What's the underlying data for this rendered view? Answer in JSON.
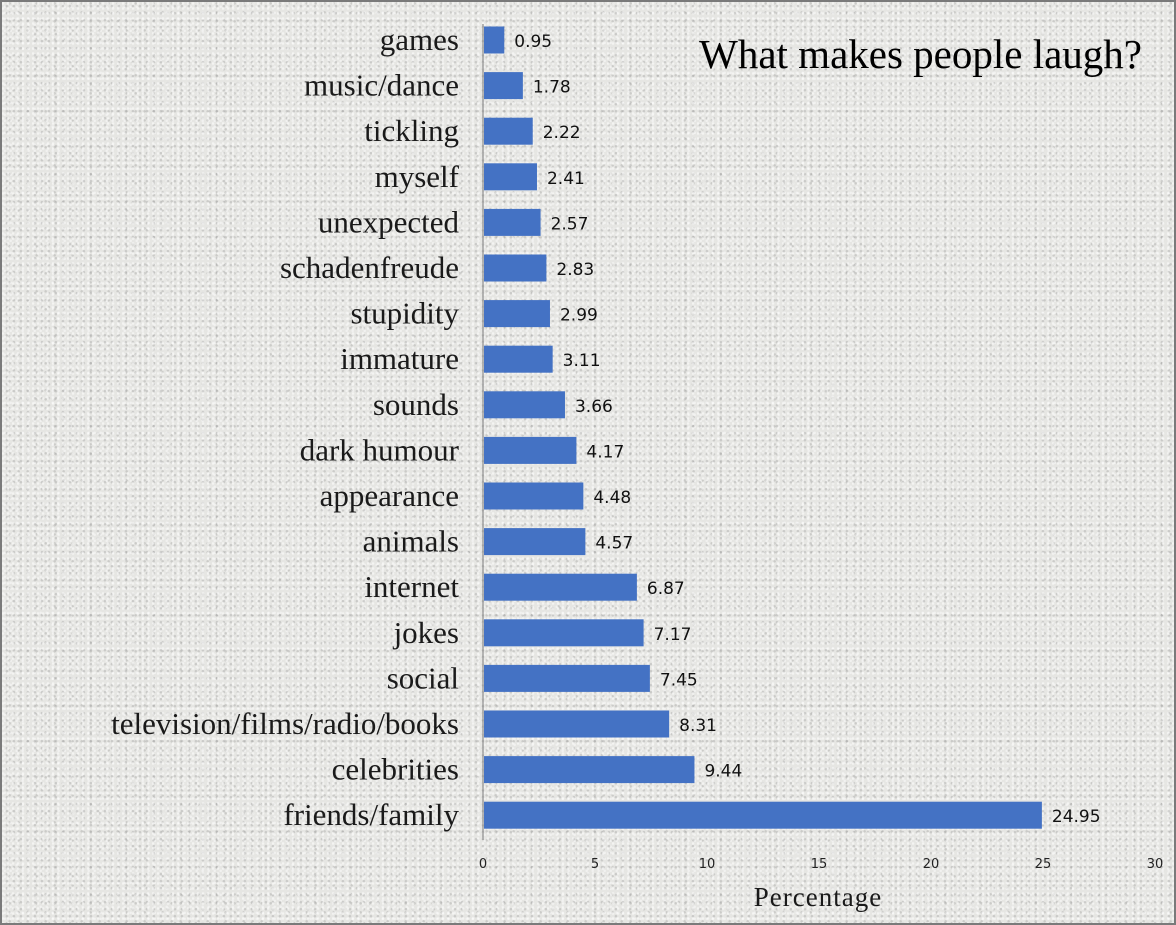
{
  "chart_data": {
    "type": "bar",
    "orientation": "horizontal",
    "title": "What makes people laugh?",
    "xlabel": "Percentage",
    "ylabel": "",
    "xlim": [
      0,
      30
    ],
    "xticks": [
      "0",
      "5",
      "10",
      "15",
      "20",
      "25",
      "30"
    ],
    "grid": false,
    "bar_color": "#4472c4",
    "categories": [
      "games",
      "music/dance",
      "tickling",
      "myself",
      "unexpected",
      "schadenfreude",
      "stupidity",
      "immature",
      "sounds",
      "dark humour",
      "appearance",
      "animals",
      "internet",
      "jokes",
      "social",
      "television/films/radio/books",
      "celebrities",
      "friends/family"
    ],
    "values": [
      0.95,
      1.78,
      2.22,
      2.41,
      2.57,
      2.83,
      2.99,
      3.11,
      3.66,
      4.17,
      4.48,
      4.57,
      6.87,
      7.17,
      7.45,
      8.31,
      9.44,
      24.95
    ],
    "value_labels": [
      "0.95",
      "1.78",
      "2.22",
      "2.41",
      "2.57",
      "2.83",
      "2.99",
      "3.11",
      "3.66",
      "4.17",
      "4.48",
      "4.57",
      "6.87",
      "7.17",
      "7.45",
      "8.31",
      "9.44",
      "24.95"
    ]
  }
}
